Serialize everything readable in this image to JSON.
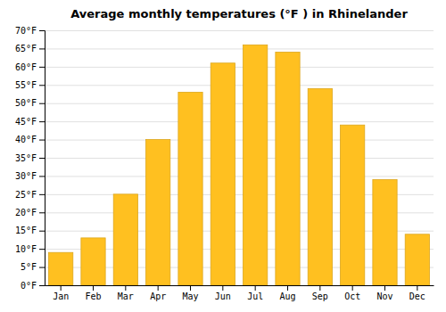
{
  "chart_data": {
    "type": "bar",
    "title": "Average monthly temperatures (°F ) in Rhinelander",
    "categories": [
      "Jan",
      "Feb",
      "Mar",
      "Apr",
      "May",
      "Jun",
      "Jul",
      "Aug",
      "Sep",
      "Oct",
      "Nov",
      "Dec"
    ],
    "values": [
      9,
      13,
      25,
      40,
      53,
      61,
      66,
      64,
      54,
      44,
      29,
      14
    ],
    "color": "#FFC020",
    "ylim": [
      0,
      70
    ],
    "yticks": [
      {
        "value": 0,
        "label": "0°F"
      },
      {
        "value": 5,
        "label": "5°F"
      },
      {
        "value": 10,
        "label": "10°F"
      },
      {
        "value": 15,
        "label": "15°F"
      },
      {
        "value": 20,
        "label": "20°F"
      },
      {
        "value": 25,
        "label": "25°F"
      },
      {
        "value": 30,
        "label": "30°F"
      },
      {
        "value": 35,
        "label": "35°F"
      },
      {
        "value": 40,
        "label": "40°F"
      },
      {
        "value": 45,
        "label": "45°F"
      },
      {
        "value": 50,
        "label": "50°F"
      },
      {
        "value": 55,
        "label": "55°F"
      },
      {
        "value": 60,
        "label": "60°F"
      },
      {
        "value": 65,
        "label": "65°F"
      },
      {
        "value": 70,
        "label": "70°F"
      }
    ],
    "grid": true
  }
}
